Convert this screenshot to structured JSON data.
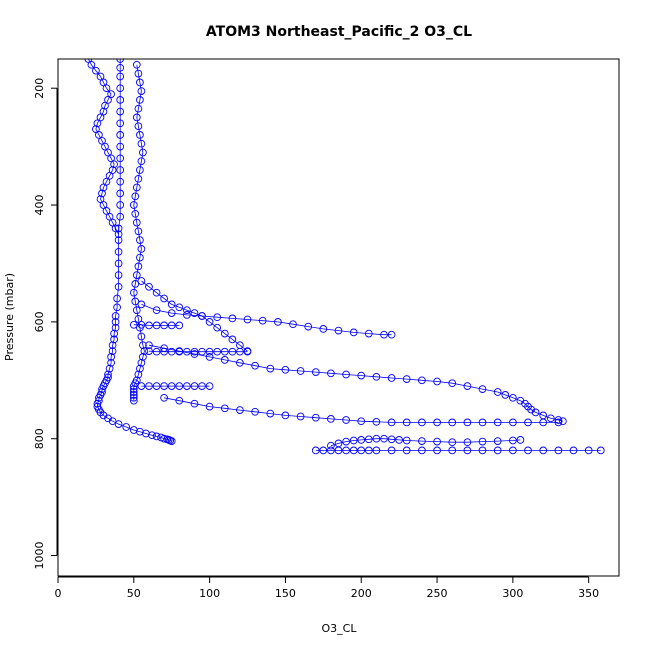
{
  "chart_data": {
    "type": "scatter",
    "title": "ATOM3 Northeast_Pacific_2 O3_CL",
    "xlabel": "O3_CL",
    "ylabel": "Pressure (mbar)",
    "xlim": [
      0,
      370
    ],
    "ylim": [
      1035,
      150
    ],
    "y_reversed": true,
    "grid": false,
    "legend": "none",
    "color": "#0000ff",
    "marker": "open-circle",
    "xticks": [
      0,
      50,
      100,
      150,
      200,
      250,
      300,
      350
    ],
    "yticks": [
      200,
      400,
      600,
      800,
      1000
    ],
    "series": [
      {
        "x": [
          41,
          41,
          41,
          41,
          41,
          41,
          41,
          41,
          41,
          41,
          41,
          41,
          41,
          41,
          41,
          40,
          40,
          40,
          40,
          40,
          40,
          39,
          39,
          38,
          38,
          38,
          37,
          37,
          36,
          36,
          35,
          35,
          34,
          33,
          33,
          32,
          31,
          30,
          29,
          29,
          28,
          27,
          27,
          26,
          26,
          27,
          28,
          30,
          33,
          36,
          40,
          45,
          50,
          54,
          58,
          62,
          65,
          68,
          70,
          72,
          73,
          74,
          75
        ],
        "y": [
          150,
          165,
          180,
          200,
          220,
          240,
          260,
          280,
          300,
          320,
          340,
          360,
          380,
          400,
          420,
          440,
          460,
          480,
          500,
          520,
          540,
          560,
          575,
          590,
          600,
          610,
          620,
          630,
          640,
          650,
          660,
          670,
          680,
          690,
          695,
          700,
          705,
          710,
          715,
          720,
          725,
          730,
          735,
          740,
          745,
          750,
          755,
          760,
          765,
          770,
          775,
          780,
          785,
          788,
          791,
          794,
          796,
          798,
          800,
          801,
          802,
          803,
          804
        ]
      },
      {
        "x": [
          52,
          53,
          54,
          55,
          54,
          53,
          52,
          53,
          54,
          55,
          56,
          55,
          54,
          53,
          52,
          51,
          50,
          51,
          52,
          53,
          54,
          55,
          54,
          53,
          52,
          51,
          50,
          51,
          52,
          53,
          54,
          55,
          56,
          57,
          56,
          55,
          54,
          53,
          52,
          51,
          50,
          50,
          50,
          50,
          50,
          50
        ],
        "y": [
          160,
          175,
          190,
          205,
          220,
          235,
          250,
          265,
          280,
          295,
          310,
          325,
          340,
          355,
          370,
          385,
          400,
          415,
          430,
          445,
          460,
          475,
          490,
          505,
          520,
          535,
          550,
          565,
          580,
          595,
          610,
          625,
          640,
          650,
          660,
          670,
          680,
          690,
          700,
          705,
          710,
          715,
          720,
          725,
          730,
          735
        ]
      },
      {
        "x": [
          20,
          22,
          25,
          28,
          30,
          32,
          35,
          33,
          31,
          30,
          28,
          26,
          25,
          27,
          29,
          31,
          33,
          35,
          37,
          36,
          34,
          32,
          30,
          29,
          28,
          30,
          32,
          34,
          36,
          38,
          40
        ],
        "y": [
          150,
          160,
          170,
          180,
          190,
          200,
          210,
          220,
          230,
          240,
          250,
          260,
          270,
          280,
          290,
          300,
          310,
          320,
          330,
          340,
          350,
          360,
          370,
          380,
          390,
          400,
          410,
          420,
          430,
          440,
          450
        ]
      },
      {
        "x": [
          55,
          60,
          65,
          70,
          75,
          80,
          85,
          90,
          95,
          100,
          105,
          110,
          115,
          120,
          125
        ],
        "y": [
          530,
          540,
          550,
          560,
          570,
          575,
          580,
          585,
          590,
          600,
          610,
          620,
          630,
          640,
          650
        ]
      },
      {
        "x": [
          55,
          65,
          75,
          85,
          95,
          105,
          115,
          125,
          135,
          145,
          155,
          165,
          175,
          185,
          195,
          205,
          215,
          220
        ],
        "y": [
          570,
          580,
          585,
          588,
          590,
          592,
          594,
          596,
          598,
          600,
          604,
          608,
          612,
          615,
          618,
          620,
          622,
          622
        ]
      },
      {
        "x": [
          60,
          70,
          80,
          90,
          100,
          110,
          120,
          130,
          140,
          150,
          160,
          170,
          180,
          190,
          200,
          210,
          220,
          230,
          240,
          250,
          260,
          270,
          280,
          290,
          295,
          300,
          305,
          308,
          310,
          312,
          315,
          320,
          325,
          330,
          333
        ],
        "y": [
          640,
          645,
          650,
          655,
          660,
          665,
          670,
          675,
          680,
          682,
          684,
          686,
          688,
          690,
          692,
          694,
          696,
          698,
          700,
          702,
          705,
          710,
          715,
          720,
          725,
          730,
          735,
          740,
          745,
          750,
          755,
          760,
          765,
          768,
          770
        ]
      },
      {
        "x": [
          70,
          80,
          90,
          100,
          110,
          120,
          130,
          140,
          150,
          160,
          170,
          180,
          190,
          200,
          210,
          220,
          230,
          240,
          250,
          260,
          270,
          280,
          290,
          300,
          310,
          320,
          330
        ],
        "y": [
          730,
          735,
          740,
          745,
          748,
          751,
          754,
          757,
          760,
          762,
          764,
          766,
          768,
          770,
          771,
          772,
          772,
          772,
          772,
          772,
          772,
          772,
          772,
          772,
          772,
          772,
          772
        ]
      },
      {
        "x": [
          170,
          175,
          180,
          185,
          190,
          195,
          200,
          205,
          210,
          220,
          230,
          240,
          250,
          260,
          270,
          280,
          290,
          300,
          310,
          320,
          330,
          340,
          350,
          358
        ],
        "y": [
          820,
          820,
          820,
          820,
          820,
          820,
          820,
          820,
          820,
          820,
          820,
          820,
          820,
          820,
          820,
          820,
          820,
          820,
          820,
          820,
          820,
          820,
          820,
          820
        ]
      },
      {
        "x": [
          180,
          185,
          190,
          195,
          200,
          205,
          210,
          215,
          220,
          225,
          230,
          240,
          250,
          260,
          270,
          280,
          290,
          300,
          305
        ],
        "y": [
          812,
          808,
          805,
          803,
          802,
          801,
          800,
          800,
          801,
          802,
          803,
          804,
          805,
          806,
          806,
          805,
          804,
          803,
          802
        ]
      },
      {
        "x": [
          60,
          65,
          70,
          75,
          80,
          85,
          90,
          95,
          100,
          105,
          110,
          115,
          120,
          125
        ],
        "y": [
          650,
          651,
          651,
          651,
          651,
          651,
          651,
          651,
          651,
          651,
          651,
          651,
          651,
          651
        ]
      },
      {
        "x": [
          55,
          60,
          65,
          70,
          75,
          80,
          85,
          90,
          95,
          100
        ],
        "y": [
          710,
          710,
          710,
          710,
          710,
          710,
          710,
          710,
          710,
          710
        ]
      },
      {
        "x": [
          50,
          55,
          60,
          65,
          70,
          75,
          80
        ],
        "y": [
          605,
          605,
          606,
          606,
          606,
          606,
          606
        ]
      }
    ]
  }
}
